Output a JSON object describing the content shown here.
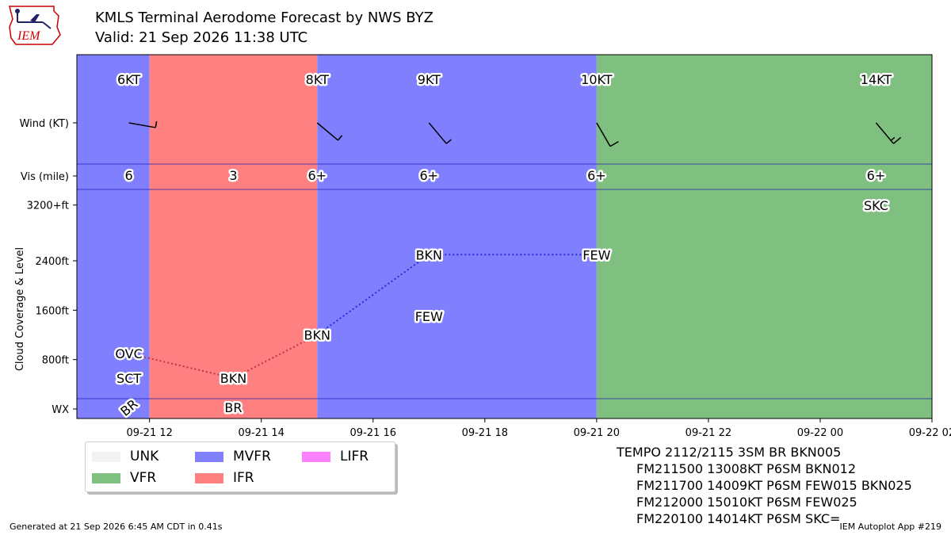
{
  "header": {
    "title_line1": "KMLS Terminal Aerodome Forecast by NWS BYZ",
    "title_line2": "Valid: 21 Sep 2026 11:38 UTC",
    "logo_text": "IEM"
  },
  "chart_data": {
    "type": "timeline",
    "xlim_hours_utc": [
      "2026-09-21 10:40",
      "2026-09-22 02:00"
    ],
    "x_ticks": [
      "09-21 12",
      "09-21 14",
      "09-21 16",
      "09-21 18",
      "09-21 20",
      "09-21 22",
      "09-22 00",
      "09-22 02"
    ],
    "x_tick_hours": [
      12,
      14,
      16,
      18,
      20,
      22,
      24,
      26
    ],
    "x_start_hour": 10.7,
    "x_end_hour": 26,
    "ylabel_cloud": "Cloud Coverage & Level",
    "row_labels": {
      "wind": "Wind (KT)",
      "vis": "Vis (mile)",
      "wx": "WX"
    },
    "cloud_ticks": [
      "800ft",
      "1600ft",
      "2400ft",
      "3200+ft"
    ],
    "cloud_tick_values": [
      800,
      1600,
      2400,
      3200
    ],
    "category_colors": {
      "UNK": "#f2f2f2",
      "VFR": "#7fbf7f",
      "MVFR": "#8080ff",
      "IFR": "#ff8080",
      "LIFR": "#ff80ff"
    },
    "category_bands": [
      {
        "start": 10.7,
        "end": 12.0,
        "cat": "MVFR"
      },
      {
        "start": 12.0,
        "end": 15.0,
        "cat": "IFR"
      },
      {
        "start": 15.0,
        "end": 20.0,
        "cat": "MVFR"
      },
      {
        "start": 20.0,
        "end": 26.0,
        "cat": "VFR"
      }
    ],
    "wind": [
      {
        "hour": 11.63,
        "label": "6KT",
        "dir": 100,
        "speed": 6
      },
      {
        "hour": 15.0,
        "label": "8KT",
        "dir": 130,
        "speed": 8
      },
      {
        "hour": 17.0,
        "label": "9KT",
        "dir": 140,
        "speed": 9
      },
      {
        "hour": 20.0,
        "label": "10KT",
        "dir": 150,
        "speed": 10
      },
      {
        "hour": 25.0,
        "label": "14KT",
        "dir": 140,
        "speed": 14
      }
    ],
    "visibility": [
      {
        "hour": 11.63,
        "label": "6"
      },
      {
        "hour": 13.5,
        "label": "3"
      },
      {
        "hour": 15.0,
        "label": "6+"
      },
      {
        "hour": 17.0,
        "label": "6+"
      },
      {
        "hour": 20.0,
        "label": "6+"
      },
      {
        "hour": 25.0,
        "label": "6+"
      }
    ],
    "clouds": [
      {
        "hour": 11.63,
        "level": 900,
        "label": "OVC"
      },
      {
        "hour": 11.63,
        "level": 500,
        "label": "SCT"
      },
      {
        "hour": 13.5,
        "level": 500,
        "label": "BKN"
      },
      {
        "hour": 15.0,
        "level": 1200,
        "label": "BKN"
      },
      {
        "hour": 17.0,
        "level": 1500,
        "label": "FEW"
      },
      {
        "hour": 17.0,
        "level": 2500,
        "label": "BKN"
      },
      {
        "hour": 20.0,
        "level": 2500,
        "label": "FEW"
      },
      {
        "hour": 25.0,
        "level": 3300,
        "label": "SKC"
      }
    ],
    "ceiling_path": [
      {
        "hour": 11.63,
        "level": 900
      },
      {
        "hour": 13.5,
        "level": 500
      },
      {
        "hour": 15.0,
        "level": 1200
      },
      {
        "hour": 17.0,
        "level": 2500
      },
      {
        "hour": 20.0,
        "level": 2500
      }
    ],
    "weather": [
      {
        "hour": 11.63,
        "label": "BR",
        "rotated": true
      },
      {
        "hour": 13.5,
        "label": "BR",
        "rotated": false
      }
    ]
  },
  "legend": {
    "items": [
      {
        "label": "UNK",
        "color": "#f2f2f2"
      },
      {
        "label": "VFR",
        "color": "#7fbf7f"
      },
      {
        "label": "MVFR",
        "color": "#8080ff"
      },
      {
        "label": "IFR",
        "color": "#ff8080"
      },
      {
        "label": "LIFR",
        "color": "#ff80ff"
      }
    ]
  },
  "taf_text": [
    "TEMPO 2112/2115 3SM BR BKN005",
    "FM211500 13008KT P6SM BKN012",
    "FM211700 14009KT P6SM FEW015 BKN025",
    "FM212000 15010KT P6SM FEW025",
    "FM220100 14014KT P6SM SKC="
  ],
  "footer": {
    "left": "Generated at 21 Sep 2026 6:45 AM CDT in 0.41s",
    "right": "IEM Autoplot App #219"
  }
}
